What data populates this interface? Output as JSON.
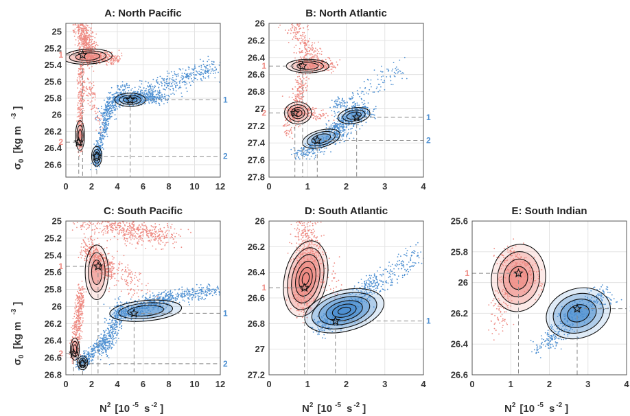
{
  "colors": {
    "red": "#ee8a82",
    "blue": "#4d8fd1",
    "contour": "#111111",
    "grid": "#e3e3e3",
    "dash": "#888888"
  },
  "ylabel": {
    "main": "σ",
    "sub": "0",
    "unit": "[kg m",
    "exp": "-3",
    "close": "]"
  },
  "xlabel": {
    "main": "N",
    "sup2": "2",
    "unit": "[10",
    "exp5": "-5",
    "s": "s",
    "expm2": "-2",
    "close": "]"
  },
  "chart_data": [
    {
      "id": "A",
      "type": "scatter",
      "title": "A: North Pacific",
      "xlim": [
        0,
        12
      ],
      "ylim": [
        24.9,
        26.75
      ],
      "reversed_y": true,
      "xticks": [
        0,
        2,
        4,
        6,
        8,
        10,
        12
      ],
      "yticks": [
        25,
        25.2,
        25.4,
        25.6,
        25.8,
        26,
        26.2,
        26.4,
        26.6
      ],
      "xtick_labels": [
        "0",
        "2",
        "4",
        "6",
        "8",
        "10",
        "12"
      ],
      "ytick_labels": [
        "25",
        "25.2",
        "25.4",
        "25.6",
        "25.8",
        "26",
        "26.2",
        "26.4",
        "26.6"
      ],
      "peaks": [
        {
          "color": "red",
          "label": "1",
          "x": 1.3,
          "y": 25.28
        },
        {
          "color": "red",
          "label": "2",
          "x": 1.0,
          "y": 26.33
        },
        {
          "color": "blue",
          "label": "1",
          "x": 5.0,
          "y": 25.82
        },
        {
          "color": "blue",
          "label": "2",
          "x": 2.4,
          "y": 26.5
        }
      ]
    },
    {
      "id": "B",
      "type": "scatter",
      "title": "B: North Atlantic",
      "xlim": [
        0,
        4
      ],
      "ylim": [
        26.0,
        27.8
      ],
      "reversed_y": true,
      "xticks": [
        0,
        1,
        2,
        3,
        4
      ],
      "yticks": [
        26,
        26.2,
        26.4,
        26.6,
        26.8,
        27,
        27.2,
        27.4,
        27.6,
        27.8
      ],
      "xtick_labels": [
        "0",
        "1",
        "2",
        "3",
        "4"
      ],
      "ytick_labels": [
        "26",
        "26.2",
        "26.4",
        "26.6",
        "26.8",
        "27",
        "27.2",
        "27.4",
        "27.6",
        "27.8"
      ],
      "peaks": [
        {
          "color": "red",
          "label": "1",
          "x": 0.87,
          "y": 26.5
        },
        {
          "color": "red",
          "label": "2",
          "x": 0.67,
          "y": 27.05
        },
        {
          "color": "blue",
          "label": "1",
          "x": 2.27,
          "y": 27.1
        },
        {
          "color": "blue",
          "label": "2",
          "x": 1.25,
          "y": 27.37
        }
      ]
    },
    {
      "id": "C",
      "type": "scatter",
      "title": "C: South Pacific",
      "xlim": [
        0,
        12
      ],
      "ylim": [
        25.0,
        26.8
      ],
      "reversed_y": true,
      "xticks": [
        0,
        2,
        4,
        6,
        8,
        10,
        12
      ],
      "yticks": [
        25,
        25.2,
        25.4,
        25.6,
        25.8,
        26,
        26.2,
        26.4,
        26.6,
        26.8
      ],
      "xtick_labels": [
        "0",
        "2",
        "4",
        "6",
        "8",
        "10",
        "12"
      ],
      "ytick_labels": [
        "25",
        "25.2",
        "25.4",
        "25.6",
        "25.8",
        "26",
        "26.2",
        "26.4",
        "26.6",
        "26.8"
      ],
      "peaks": [
        {
          "color": "red",
          "label": "1",
          "x": 2.5,
          "y": 25.53
        },
        {
          "color": "red",
          "label": "2",
          "x": 0.6,
          "y": 26.55
        },
        {
          "color": "blue",
          "label": "1",
          "x": 5.3,
          "y": 26.08
        },
        {
          "color": "blue",
          "label": "2",
          "x": 1.3,
          "y": 26.67
        }
      ]
    },
    {
      "id": "D",
      "type": "scatter",
      "title": "D: South Atlantic",
      "xlim": [
        0,
        4
      ],
      "ylim": [
        26.0,
        27.2
      ],
      "reversed_y": true,
      "xticks": [
        0,
        1,
        2,
        3,
        4
      ],
      "yticks": [
        26,
        26.2,
        26.4,
        26.6,
        26.8,
        27,
        27.2
      ],
      "xtick_labels": [
        "0",
        "1",
        "2",
        "3",
        "4"
      ],
      "ytick_labels": [
        "26",
        "26.2",
        "26.4",
        "26.6",
        "26.8",
        "27",
        "27.2"
      ],
      "peaks": [
        {
          "color": "red",
          "label": "1",
          "x": 0.92,
          "y": 26.52
        },
        {
          "color": "blue",
          "label": "1",
          "x": 1.72,
          "y": 26.78
        }
      ]
    },
    {
      "id": "E",
      "type": "scatter",
      "title": "E: South  Indian",
      "xlim": [
        0,
        4
      ],
      "ylim": [
        25.6,
        26.6
      ],
      "reversed_y": true,
      "xticks": [
        0,
        1,
        2,
        3,
        4
      ],
      "yticks": [
        25.6,
        25.8,
        26,
        26.2,
        26.4,
        26.6
      ],
      "xtick_labels": [
        "0",
        "1",
        "2",
        "3",
        "4"
      ],
      "ytick_labels": [
        "25.6",
        "25.8",
        "26",
        "26.2",
        "26.4",
        "26.6"
      ],
      "peaks": [
        {
          "color": "red",
          "label": "1",
          "x": 1.2,
          "y": 25.94
        },
        {
          "color": "blue",
          "label": "1",
          "x": 2.72,
          "y": 26.17
        }
      ]
    }
  ]
}
